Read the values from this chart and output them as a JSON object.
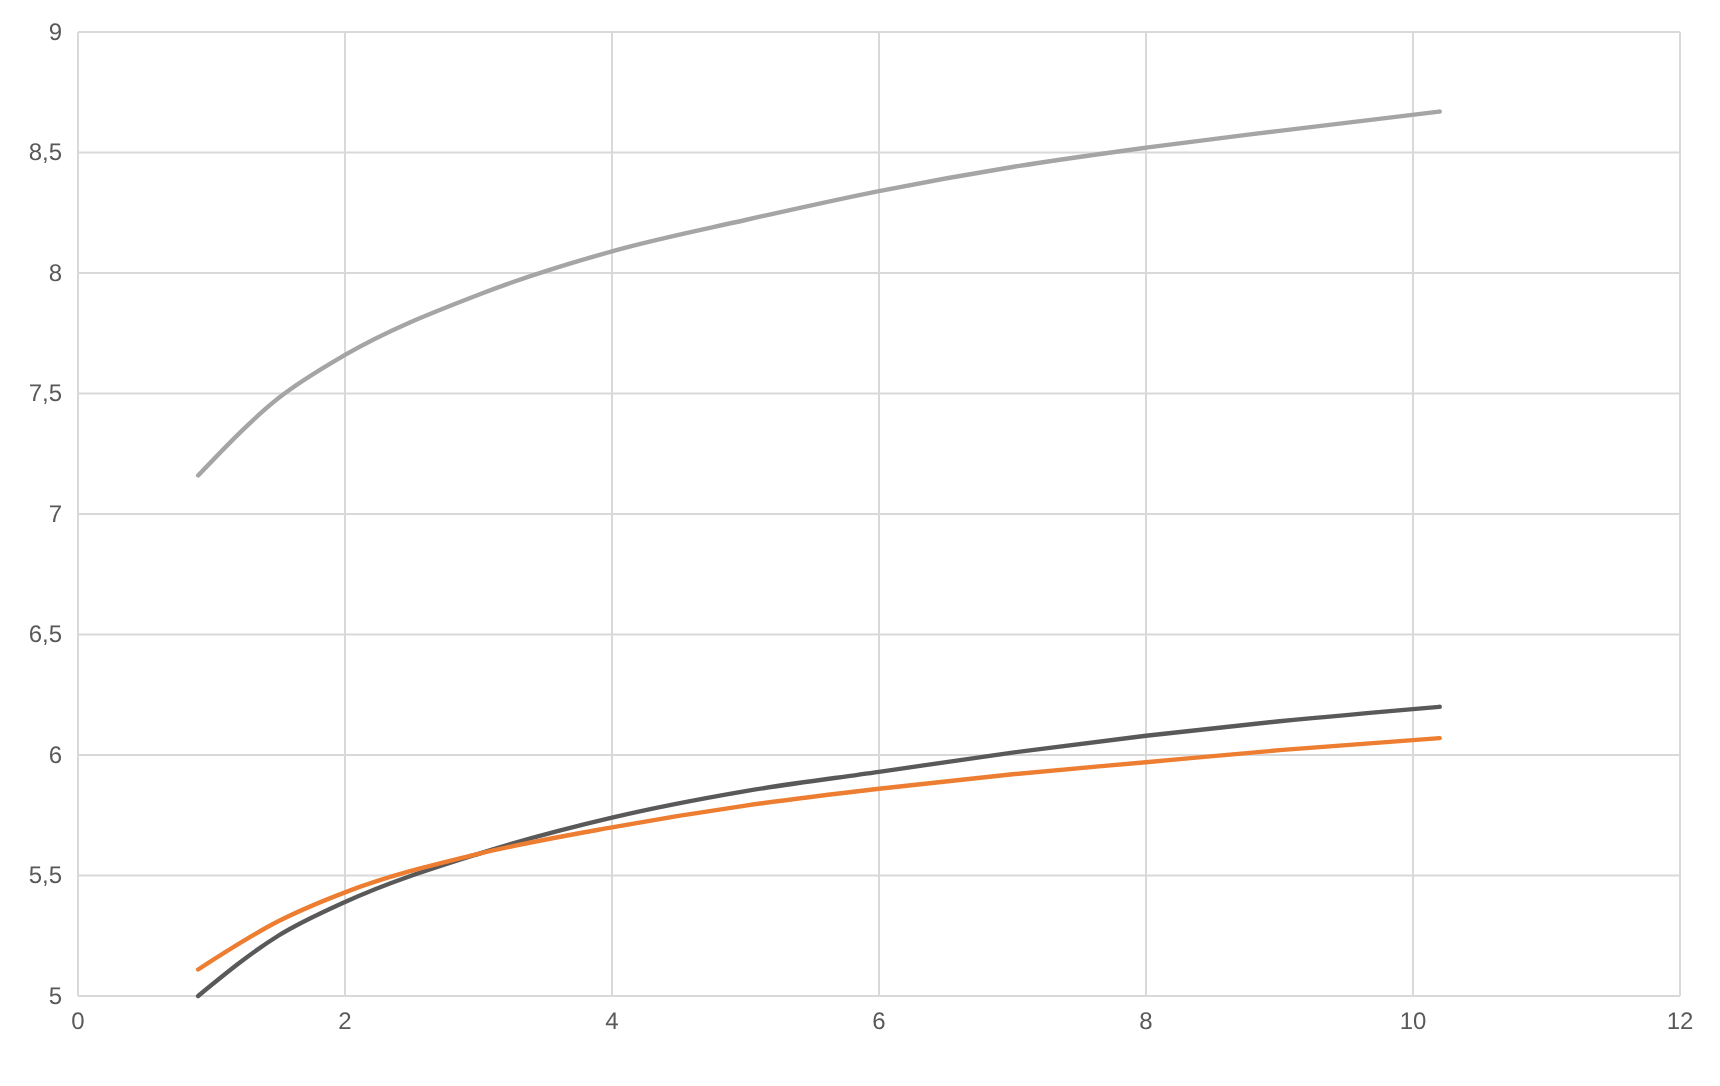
{
  "chart_data": {
    "type": "line",
    "x": [
      0.9,
      1.5,
      2,
      3,
      4,
      5,
      6,
      7,
      8,
      9,
      10.2
    ],
    "series": [
      {
        "color": "#a5a5a5",
        "values": [
          7.16,
          7.48,
          7.66,
          7.91,
          8.09,
          8.22,
          8.34,
          8.44,
          8.52,
          8.59,
          8.67
        ]
      },
      {
        "color": "#595959",
        "values": [
          5.0,
          5.25,
          5.39,
          5.59,
          5.74,
          5.85,
          5.93,
          6.01,
          6.08,
          6.14,
          6.2
        ]
      },
      {
        "color": "#ed7d31",
        "values": [
          5.11,
          5.31,
          5.43,
          5.59,
          5.7,
          5.79,
          5.86,
          5.92,
          5.97,
          6.02,
          6.07
        ]
      }
    ],
    "xlim": [
      0,
      12
    ],
    "xticks": [
      0,
      2,
      4,
      6,
      8,
      10,
      12
    ],
    "ylim": [
      5,
      9
    ],
    "yticks": [
      5,
      {
        "value": 5.5,
        "label": "5,5"
      },
      6,
      {
        "value": 6.5,
        "label": "6,5"
      },
      7,
      {
        "value": 7.5,
        "label": "7,5"
      },
      8,
      {
        "value": 8.5,
        "label": "8,5"
      },
      9
    ],
    "grid": true,
    "marker": "none",
    "line_style": "solid"
  }
}
